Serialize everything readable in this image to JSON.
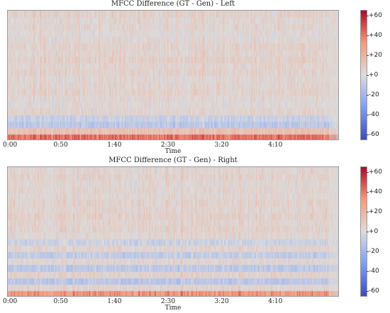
{
  "chart_data": [
    {
      "type": "heatmap",
      "title": "MFCC Difference (GT - Gen) - Left",
      "xlabel": "Time",
      "x_ticks": [
        "0:00",
        "0:50",
        "1:40",
        "2:30",
        "3:20",
        "4:10"
      ],
      "x_tick_seconds": [
        0,
        50,
        100,
        150,
        200,
        250
      ],
      "x_range_seconds": [
        0,
        300
      ],
      "colorbar": {
        "ticks": [
          "+60",
          "+40",
          "+20",
          "+0",
          "-20",
          "-40",
          "-60"
        ],
        "range": [
          -60,
          60
        ],
        "colormap": "coolwarm"
      },
      "row_bias": [
        38,
        12,
        -10,
        -6,
        4,
        2,
        3,
        5,
        4,
        3,
        5,
        4,
        6,
        4,
        5,
        3,
        2,
        4,
        3,
        5
      ]
    },
    {
      "type": "heatmap",
      "title": "MFCC Difference (GT - Gen) - Right",
      "xlabel": "Time",
      "x_ticks": [
        "0:00",
        "0:50",
        "1:40",
        "2:30",
        "3:20",
        "4:10"
      ],
      "x_tick_seconds": [
        0,
        50,
        100,
        150,
        200,
        250
      ],
      "x_range_seconds": [
        0,
        300
      ],
      "colorbar": {
        "ticks": [
          "+60",
          "+40",
          "+20",
          "+0",
          "-20",
          "-40",
          "-60"
        ],
        "range": [
          -60,
          60
        ],
        "colormap": "coolwarm"
      },
      "row_bias": [
        30,
        4,
        -10,
        5,
        -9,
        3,
        -8,
        4,
        -5,
        3,
        5,
        4,
        6,
        4,
        5,
        3,
        4,
        3,
        5,
        4
      ]
    }
  ]
}
